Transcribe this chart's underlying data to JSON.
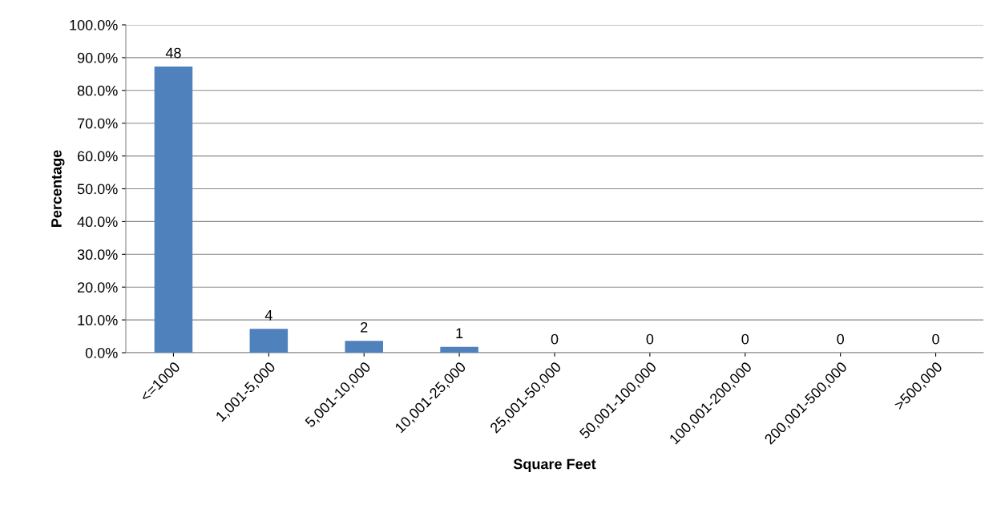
{
  "chart_data": {
    "type": "bar",
    "xlabel": "Square Feet",
    "ylabel": "Percentage",
    "categories": [
      "<=1000",
      "1,001-5,000",
      "5,001-10,000",
      "10,001-25,000",
      "25,001-50,000",
      "50,001-100,000",
      "100,001-200,000",
      "200,001-500,000",
      ">500,000"
    ],
    "values": [
      87.3,
      7.3,
      3.6,
      1.8,
      0,
      0,
      0,
      0,
      0
    ],
    "annotations": [
      {
        "text": "48",
        "x": "<=1000",
        "y": 87.3
      },
      {
        "text": "4",
        "x": "1,001-5,000",
        "y": 7.3
      },
      {
        "text": "2",
        "x": "5,001-10,000",
        "y": 3.6
      },
      {
        "text": "1",
        "x": "10,001-25,000",
        "y": 1.8
      },
      {
        "text": "0",
        "x": "25,001-50,000",
        "y": 0
      },
      {
        "text": "0",
        "x": "50,001-100,000",
        "y": 0
      },
      {
        "text": "0",
        "x": "100,001-200,000",
        "y": 0
      },
      {
        "text": "0",
        "x": "200,001-500,000",
        "y": 0
      },
      {
        "text": "0",
        "x": ">500,000",
        "y": 0
      }
    ],
    "color": "#4f81bd",
    "ylim": [
      0,
      100
    ],
    "yticks": [
      {
        "value": 0,
        "label": "0.0%"
      },
      {
        "value": 10,
        "label": "10.0%"
      },
      {
        "value": 20,
        "label": "20.0%"
      },
      {
        "value": 30,
        "label": "30.0%"
      },
      {
        "value": 40,
        "label": "40.0%"
      },
      {
        "value": 50,
        "label": "50.0%"
      },
      {
        "value": 60,
        "label": "60.0%"
      },
      {
        "value": 70,
        "label": "70.0%"
      },
      {
        "value": 80,
        "label": "80.0%"
      },
      {
        "value": 90,
        "label": "90.0%"
      },
      {
        "value": 100,
        "label": "100.0%"
      }
    ],
    "grid": "y"
  }
}
